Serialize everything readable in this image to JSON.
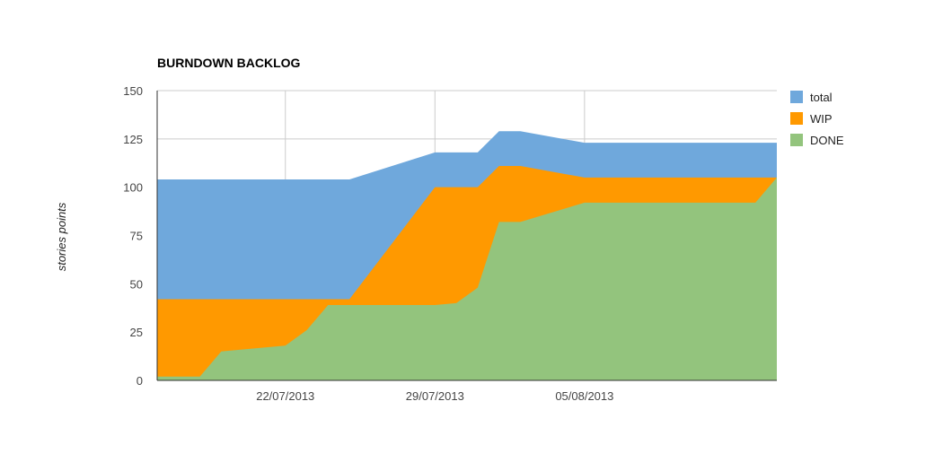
{
  "chart_data": {
    "type": "area",
    "title": "BURNDOWN BACKLOG",
    "xlabel": "",
    "ylabel": "stories points",
    "ylim": [
      0,
      150
    ],
    "yticks": [
      0,
      25,
      50,
      75,
      100,
      125,
      150
    ],
    "grid": true,
    "legend_position": "right",
    "x_start": "2013-07-16",
    "x_end": "2013-08-14",
    "xtick_labels": [
      {
        "date": "2013-07-22",
        "label": "22/07/2013"
      },
      {
        "date": "2013-07-29",
        "label": "29/07/2013"
      },
      {
        "date": "2013-08-05",
        "label": "05/08/2013"
      }
    ],
    "x": [
      "2013-07-16",
      "2013-07-18",
      "2013-07-19",
      "2013-07-22",
      "2013-07-23",
      "2013-07-24",
      "2013-07-25",
      "2013-07-29",
      "2013-07-30",
      "2013-07-31",
      "2013-08-01",
      "2013-08-02",
      "2013-08-05",
      "2013-08-13",
      "2013-08-14"
    ],
    "series": [
      {
        "name": "total",
        "color": "#6fa8dc",
        "values": [
          104,
          104,
          104,
          104,
          104,
          104,
          104,
          118,
          118,
          118,
          129,
          129,
          123,
          123,
          123
        ]
      },
      {
        "name": "WIP",
        "color": "#ff9900",
        "values": [
          42,
          42,
          42,
          42,
          42,
          42,
          42,
          100,
          100,
          100,
          111,
          111,
          105,
          105,
          105
        ]
      },
      {
        "name": "DONE",
        "color": "#93c47d",
        "values": [
          2,
          2,
          15,
          18,
          26,
          39,
          39,
          39,
          40,
          48,
          82,
          82,
          92,
          92,
          105
        ]
      }
    ]
  }
}
